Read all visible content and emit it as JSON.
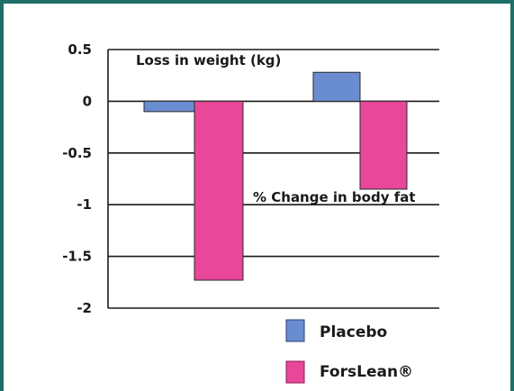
{
  "chart_data": {
    "type": "bar",
    "categories": [
      "Loss in weight (kg)",
      "% Change in body fat"
    ],
    "series": [
      {
        "name": "Placebo",
        "values": [
          -0.1,
          0.28
        ],
        "color": "#6a8cd0"
      },
      {
        "name": "ForsLean®",
        "values": [
          -1.73,
          -0.85
        ],
        "color": "#e8479a"
      }
    ],
    "ylim": [
      -2,
      0.5
    ],
    "yticks": [
      0.5,
      0,
      -0.5,
      -1,
      -1.5,
      -2
    ],
    "ytick_labels": [
      "0.5",
      "0",
      "-0.5",
      "-1",
      "-1.5",
      "-2"
    ],
    "grid": true,
    "legend_position": "bottom-right",
    "annotations": [
      "Loss in weight (kg)",
      "% Change in body fat"
    ],
    "frame_color": "#1f6f69"
  }
}
